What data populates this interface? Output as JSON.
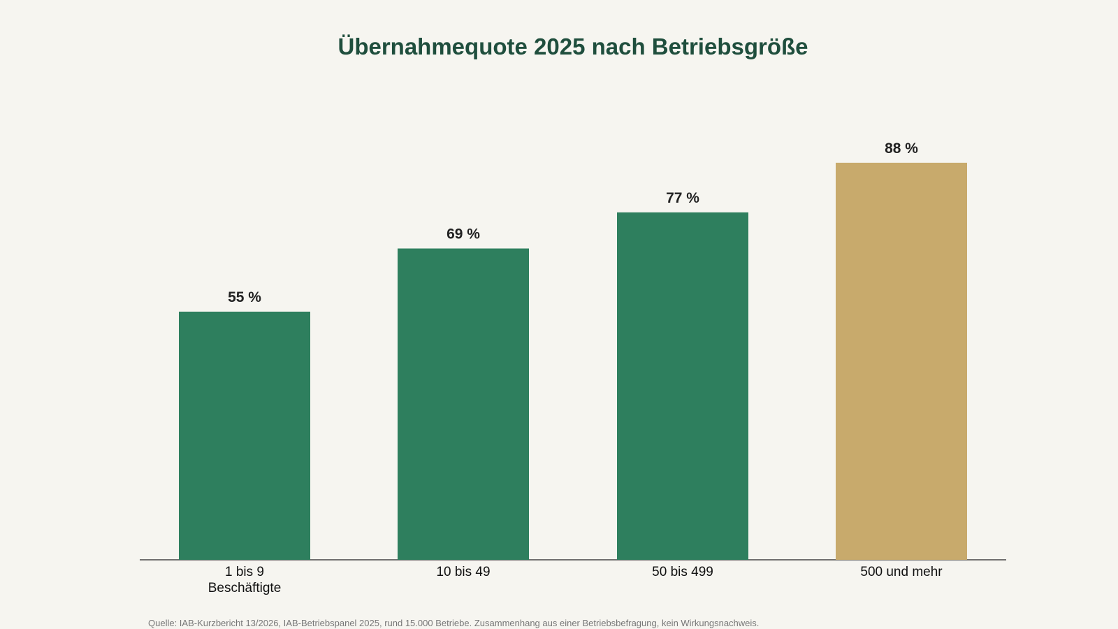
{
  "chart_data": {
    "type": "bar",
    "title": "Übernahmequote 2025 nach Betriebsgröße",
    "categories": [
      "1 bis 9 Beschäftigte",
      "10 bis 49",
      "50 bis 499",
      "500 und mehr"
    ],
    "values": [
      55,
      69,
      77,
      88
    ],
    "value_labels": [
      "55 %",
      "69 %",
      "77 %",
      "88 %"
    ],
    "colors": [
      "#2e7f5e",
      "#2e7f5e",
      "#2e7f5e",
      "#c8aa6c"
    ],
    "source": "Quelle: IAB-Kurzbericht 13/2026, IAB-Betriebspanel 2025, rund 15.000 Betriebe. Zusammenhang aus einer Betriebsbefragung, kein Wirkungsnachweis."
  }
}
